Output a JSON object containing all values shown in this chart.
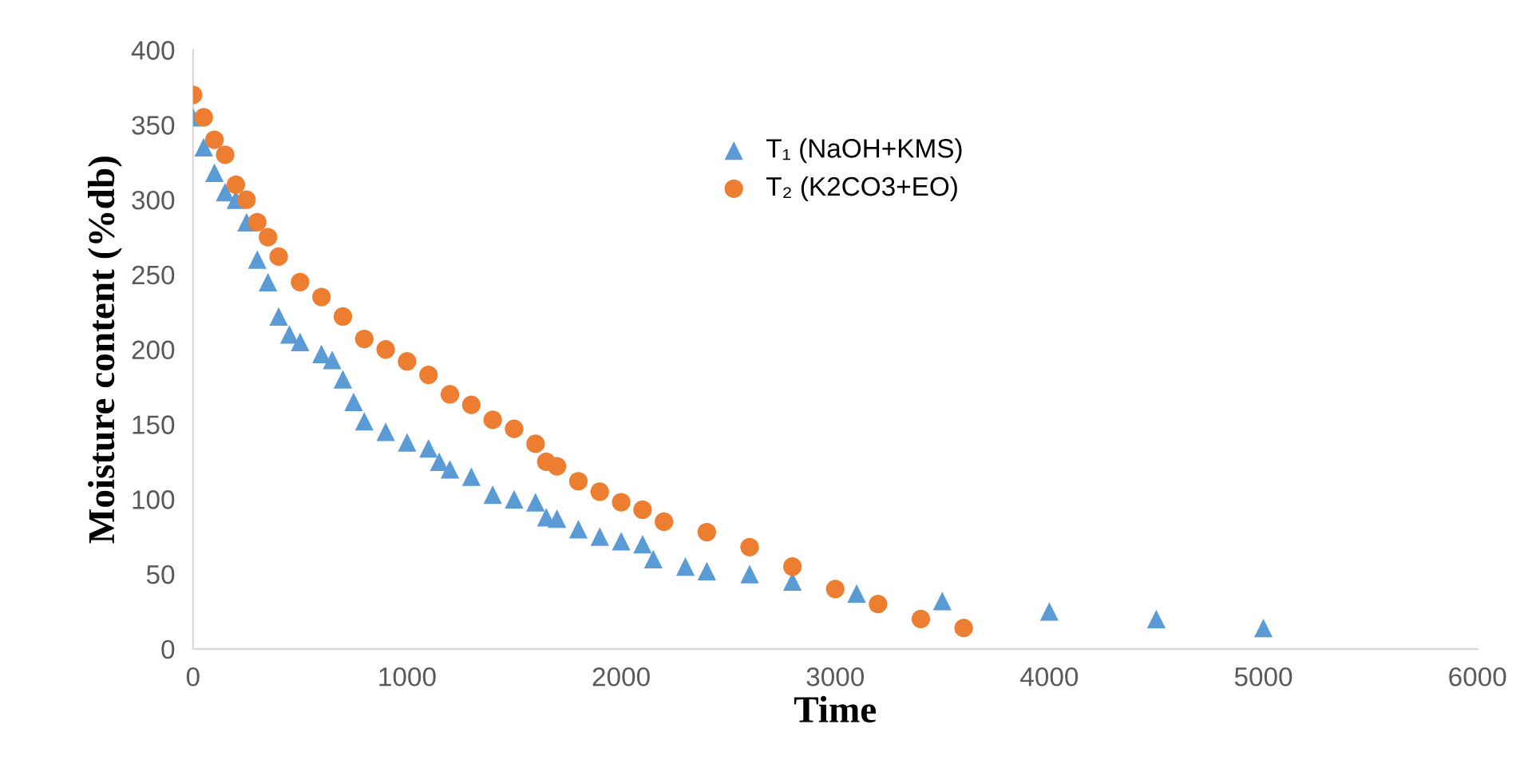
{
  "chart_data": {
    "type": "scatter",
    "xlabel": "Time",
    "ylabel": "Moisture content (%db)",
    "xlim": [
      0,
      6000
    ],
    "ylim": [
      0,
      400
    ],
    "xticks": [
      0,
      1000,
      2000,
      3000,
      4000,
      5000,
      6000
    ],
    "yticks": [
      0,
      50,
      100,
      150,
      200,
      250,
      300,
      350,
      400
    ],
    "grid": false,
    "legend": "top",
    "series": [
      {
        "name": "T₁ (NaOH+KMS)",
        "color": "#5b9bd5",
        "marker": "triangle",
        "x": [
          0,
          50,
          100,
          150,
          200,
          250,
          300,
          350,
          400,
          450,
          500,
          600,
          650,
          700,
          750,
          800,
          900,
          1000,
          1100,
          1150,
          1200,
          1300,
          1400,
          1500,
          1600,
          1650,
          1700,
          1800,
          1900,
          2000,
          2100,
          2150,
          2300,
          2400,
          2600,
          2800,
          3100,
          3500,
          4000,
          4500,
          5000
        ],
        "values": [
          355,
          335,
          318,
          305,
          300,
          285,
          260,
          245,
          222,
          210,
          205,
          197,
          193,
          180,
          165,
          152,
          145,
          138,
          134,
          125,
          120,
          115,
          103,
          100,
          98,
          88,
          87,
          80,
          75,
          72,
          70,
          60,
          55,
          52,
          50,
          45,
          37,
          32,
          25,
          20,
          14
        ]
      },
      {
        "name": "T₂ (K2CO3+EO)",
        "color": "#ed7d31",
        "marker": "circle",
        "x": [
          0,
          50,
          100,
          150,
          200,
          250,
          300,
          350,
          400,
          500,
          600,
          700,
          800,
          900,
          1000,
          1100,
          1200,
          1300,
          1400,
          1500,
          1600,
          1650,
          1700,
          1800,
          1900,
          2000,
          2100,
          2200,
          2400,
          2600,
          2800,
          3000,
          3200,
          3400,
          3600
        ],
        "values": [
          370,
          355,
          340,
          330,
          310,
          300,
          285,
          275,
          262,
          245,
          235,
          222,
          207,
          200,
          192,
          183,
          170,
          163,
          153,
          147,
          137,
          125,
          122,
          112,
          105,
          98,
          93,
          85,
          78,
          68,
          55,
          40,
          30,
          20,
          14
        ]
      }
    ]
  }
}
